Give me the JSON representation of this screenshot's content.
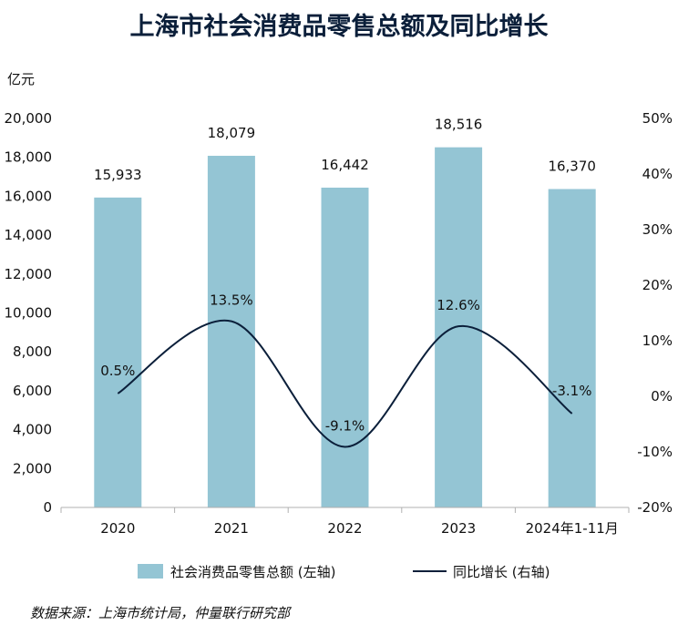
{
  "chart_data": {
    "type": "bar+line",
    "title": "上海市社会消费品零售总额及同比增长",
    "left_axis_unit": "亿元",
    "categories": [
      "2020",
      "2021",
      "2022",
      "2023",
      "2024年1-11月"
    ],
    "series": [
      {
        "name": "社会消费品零售总额 (左轴)",
        "type": "bar",
        "axis": "left",
        "color": "#94c5d4",
        "values": [
          15933,
          18079,
          16442,
          18516,
          16370
        ],
        "labels": [
          "15,933",
          "18,079",
          "16,442",
          "18,516",
          "16,370"
        ]
      },
      {
        "name": "同比增长 (右轴)",
        "type": "line",
        "axis": "right",
        "color": "#0b1f3a",
        "values": [
          0.5,
          13.5,
          -9.1,
          12.6,
          -3.1
        ],
        "labels": [
          "0.5%",
          "13.5%",
          "-9.1%",
          "12.6%",
          "-3.1%"
        ]
      }
    ],
    "left_axis": {
      "min": 0,
      "max": 20000,
      "ticks": [
        0,
        2000,
        4000,
        6000,
        8000,
        10000,
        12000,
        14000,
        16000,
        18000,
        20000
      ],
      "tick_labels": [
        "0",
        "2,000",
        "4,000",
        "6,000",
        "8,000",
        "10,000",
        "12,000",
        "14,000",
        "16,000",
        "18,000",
        "20,000"
      ]
    },
    "right_axis": {
      "min": -20,
      "max": 50,
      "ticks": [
        -20,
        -10,
        0,
        10,
        20,
        30,
        40,
        50
      ],
      "tick_labels": [
        "-20%",
        "-10%",
        "0%",
        "10%",
        "20%",
        "30%",
        "40%",
        "50%"
      ]
    },
    "grid": false,
    "legend": "bottom"
  },
  "source": "数据来源：上海市统计局，仲量联行研究部"
}
